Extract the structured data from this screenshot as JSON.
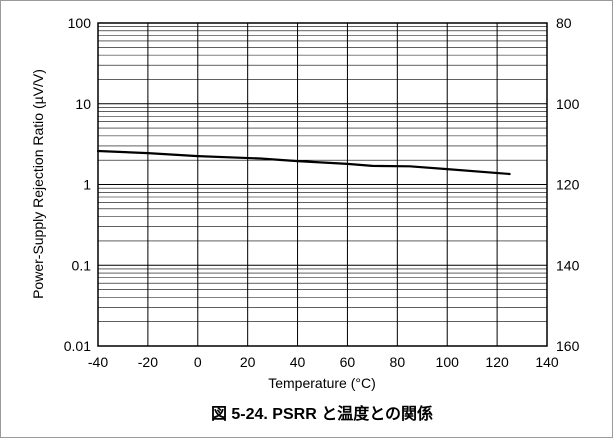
{
  "chart_data": {
    "type": "line",
    "xlabel": "Temperature (°C)",
    "ylabel": "Power-Supply Rejection Ratio (µV/V)",
    "y_scale": "log",
    "xlim": [
      -40,
      140
    ],
    "ylim": [
      0.01,
      100
    ],
    "x_ticks": [
      "-40",
      "-20",
      "0",
      "20",
      "40",
      "60",
      "80",
      "100",
      "120",
      "140"
    ],
    "y_ticks": [
      "100",
      "10",
      "1",
      "0.1",
      "0.01"
    ],
    "y_secondary_ticks": [
      "80",
      "100",
      "120",
      "140",
      "160"
    ],
    "series": [
      {
        "x": [
          -40,
          -20,
          0,
          25,
          40,
          60,
          70,
          85,
          100,
          125
        ],
        "y": [
          2.6,
          2.45,
          2.25,
          2.1,
          1.95,
          1.8,
          1.7,
          1.68,
          1.55,
          1.35
        ]
      }
    ],
    "grid": true,
    "caption": "図 5-24. PSRR と温度との関係"
  },
  "colors": {
    "line": "#000000",
    "grid": "#000000",
    "frame": "#000000",
    "border": "#9a9a9a"
  }
}
